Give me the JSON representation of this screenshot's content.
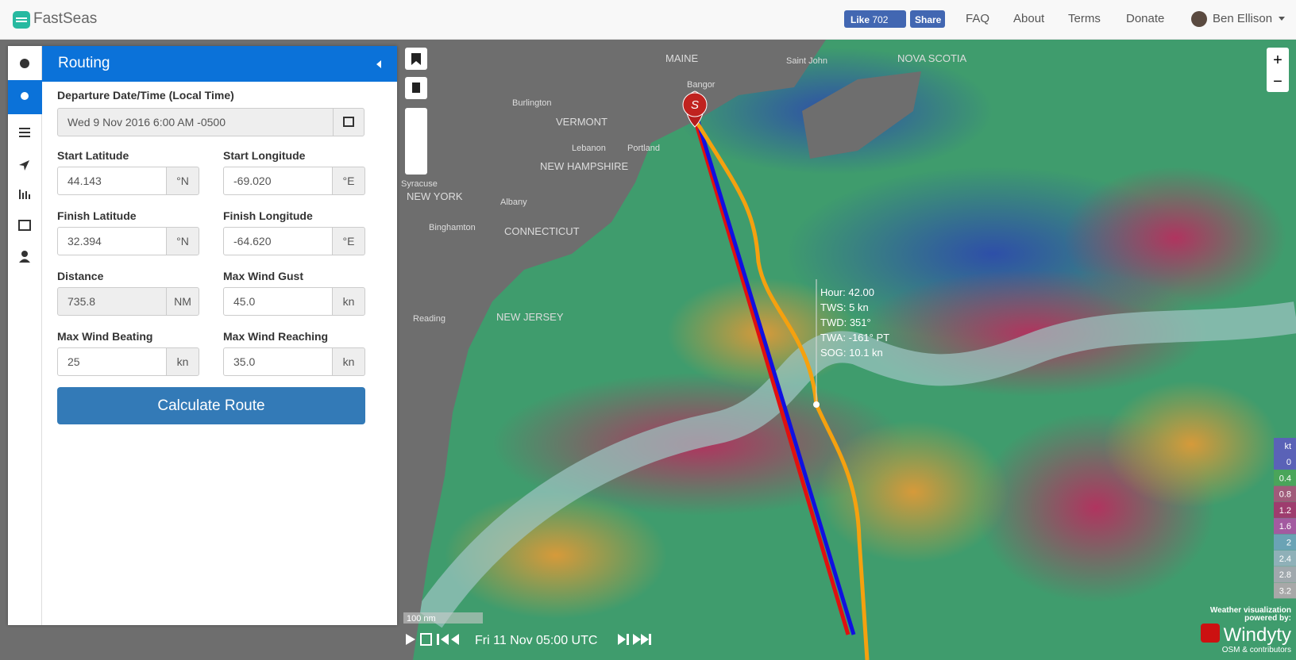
{
  "nav": {
    "brand": "FastSeas",
    "like": "Like",
    "like_count": "702",
    "share": "Share",
    "links": [
      "FAQ",
      "About",
      "Terms",
      "Donate"
    ],
    "user": "Ben Ellison"
  },
  "panel": {
    "title": "Routing",
    "departure": {
      "label": "Departure Date/Time (Local Time)",
      "value": "Wed 9 Nov 2016 6:00 AM -0500"
    },
    "fields": [
      {
        "label": "Start Latitude",
        "value": "44.143",
        "unit": "°N"
      },
      {
        "label": "Start Longitude",
        "value": "-69.020",
        "unit": "°E"
      },
      {
        "label": "Finish Latitude",
        "value": "32.394",
        "unit": "°N"
      },
      {
        "label": "Finish Longitude",
        "value": "-64.620",
        "unit": "°E"
      },
      {
        "label": "Distance",
        "value": "735.8",
        "unit": "NM"
      },
      {
        "label": "Max Wind Gust",
        "value": "45.0",
        "unit": "kn"
      },
      {
        "label": "Max Wind Beating",
        "value": "25",
        "unit": "kn"
      },
      {
        "label": "Max Wind Reaching",
        "value": "35.0",
        "unit": "kn"
      }
    ],
    "button": "Calculate Route"
  },
  "map": {
    "places": [
      "MAINE",
      "NOVA SCOTIA",
      "VERMONT",
      "NEW HAMPSHIRE",
      "NEW YORK",
      "CONNECTICUT",
      "NEW JERSEY",
      "Saint John",
      "Bangor",
      "Burlington",
      "Lebanon",
      "Portland",
      "Albany",
      "Syracuse",
      "Binghamton",
      "Reading"
    ],
    "marker": "S",
    "tooltip": [
      "Hour: 42.00",
      "TWS: 5 kn",
      "TWD: 351°",
      "TWA: -161° PT",
      "SOG: 10.1 kn"
    ],
    "scale": "100 nm",
    "time": "Fri 11 Nov 05:00 UTC",
    "legend_unit": "kt",
    "legend": [
      "0",
      "0.4",
      "0.8",
      "1.2",
      "1.6",
      "2",
      "2.4",
      "2.8",
      "3.2"
    ],
    "credit": [
      "Weather visualization",
      "powered by:",
      "Windyty",
      "OSM & contributors"
    ],
    "zoom_in": "+",
    "zoom_out": "−"
  }
}
